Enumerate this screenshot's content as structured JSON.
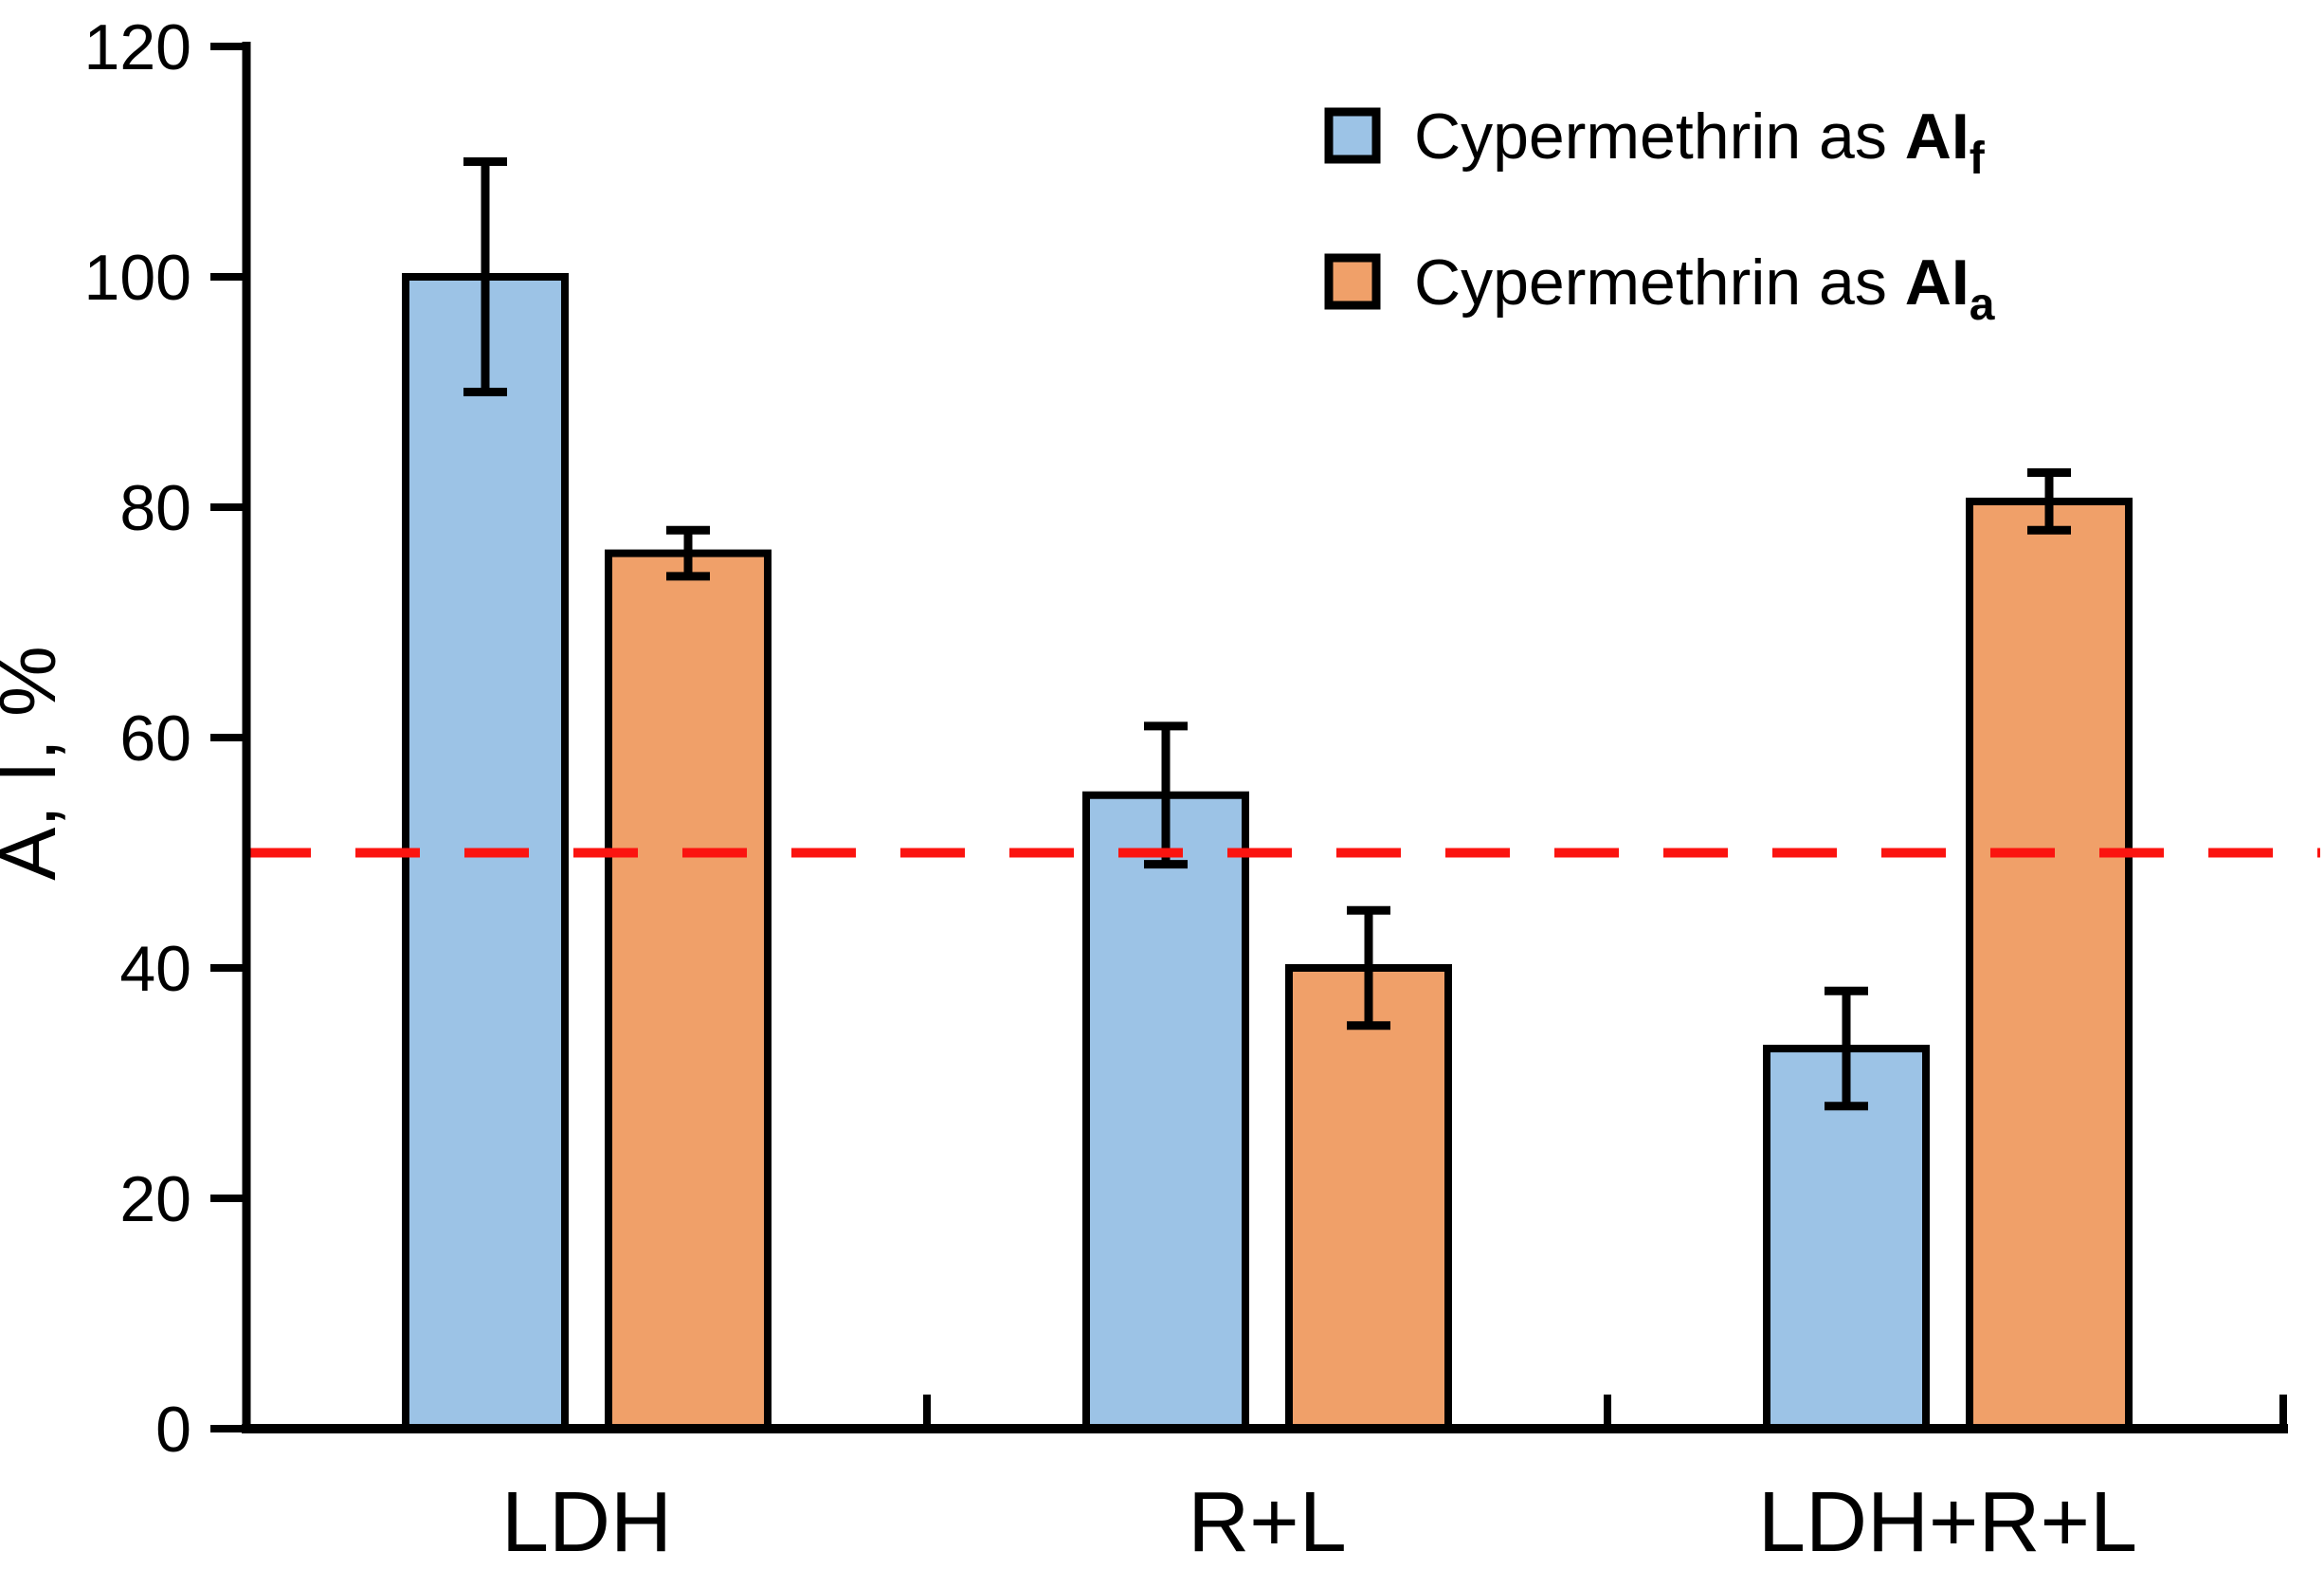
{
  "figure": {
    "background": "#FFFFFF"
  },
  "chart_data": {
    "type": "bar",
    "title": "",
    "xlabel": "",
    "ylabel": "A, I, %",
    "ylim": [
      0,
      120
    ],
    "ytick_step": 20,
    "yticks": [
      0,
      20,
      40,
      60,
      80,
      100,
      120
    ],
    "categories": [
      "LDH",
      "R+L",
      "LDH+R+L"
    ],
    "series": [
      {
        "name": "Cypermethrin as AIf",
        "legend_prefix": "Cypermethrin as ",
        "legend_bold": "AI",
        "legend_sub": "f",
        "color": "#9CC3E6",
        "values": [
          100,
          55,
          33
        ],
        "errors": [
          10,
          6,
          5
        ]
      },
      {
        "name": "Cypermethrin as AIa",
        "legend_prefix": "Cypermethrin as ",
        "legend_bold": "AI",
        "legend_sub": "a",
        "color": "#F0A069",
        "values": [
          76,
          40,
          80.5
        ],
        "errors": [
          2,
          5,
          2.5
        ]
      }
    ],
    "reference_line": {
      "value": 50,
      "color": "#FB1410",
      "style": "dashed"
    },
    "legend_position": "upper right",
    "grid": false,
    "bar_edge_color": "#000000",
    "error_bar_color": "#000000",
    "axis_color": "#000000"
  }
}
